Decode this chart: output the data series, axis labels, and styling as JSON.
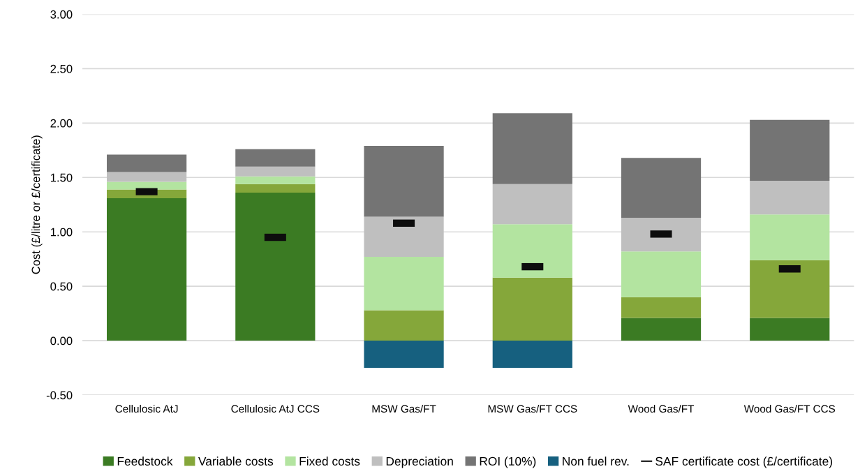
{
  "chart_data": {
    "type": "bar",
    "stacked": true,
    "ylabel": "Cost (£/litre or £/certificate)",
    "categories": [
      "Cellulosic AtJ",
      "Cellulosic AtJ CCS",
      "MSW Gas/FT",
      "MSW Gas/FT CCS",
      "Wood Gas/FT",
      "Wood Gas/FT CCS"
    ],
    "series": [
      {
        "name": "Feedstock",
        "color": "#3b7b23",
        "values": [
          1.31,
          1.36,
          0,
          0,
          0.21,
          0.21
        ]
      },
      {
        "name": "Variable costs",
        "color": "#85a73a",
        "values": [
          0.08,
          0.08,
          0.28,
          0.58,
          0.19,
          0.53
        ]
      },
      {
        "name": "Fixed costs",
        "color": "#b3e4a0",
        "values": [
          0.07,
          0.07,
          0.49,
          0.49,
          0.42,
          0.42
        ]
      },
      {
        "name": "Depreciation",
        "color": "#bfbfbf",
        "values": [
          0.09,
          0.09,
          0.37,
          0.37,
          0.31,
          0.31
        ]
      },
      {
        "name": "ROI (10%)",
        "color": "#747474",
        "values": [
          0.16,
          0.16,
          0.65,
          0.65,
          0.55,
          0.56
        ]
      },
      {
        "name": "Non fuel rev.",
        "color": "#16607f",
        "values": [
          0,
          0,
          -0.25,
          -0.25,
          0,
          0
        ]
      },
      {
        "name": "SAF certificate cost (£/certificate)",
        "type": "scatter",
        "color": "#0d0d0d",
        "values": [
          1.37,
          0.95,
          1.08,
          0.68,
          0.98,
          0.66
        ]
      }
    ],
    "ylim": [
      -0.5,
      3.0
    ],
    "yticks": [
      {
        "value": -0.5,
        "label": "-0.50"
      },
      {
        "value": 0,
        "label": "0.00"
      },
      {
        "value": 0.5,
        "label": "0.50"
      },
      {
        "value": 1.0,
        "label": "1.00"
      },
      {
        "value": 1.5,
        "label": "1.50"
      },
      {
        "value": 2.0,
        "label": "2.00"
      },
      {
        "value": 2.5,
        "label": "2.50"
      },
      {
        "value": 3.0,
        "label": "3.00"
      }
    ],
    "grid": "y",
    "legend": "bottom"
  }
}
